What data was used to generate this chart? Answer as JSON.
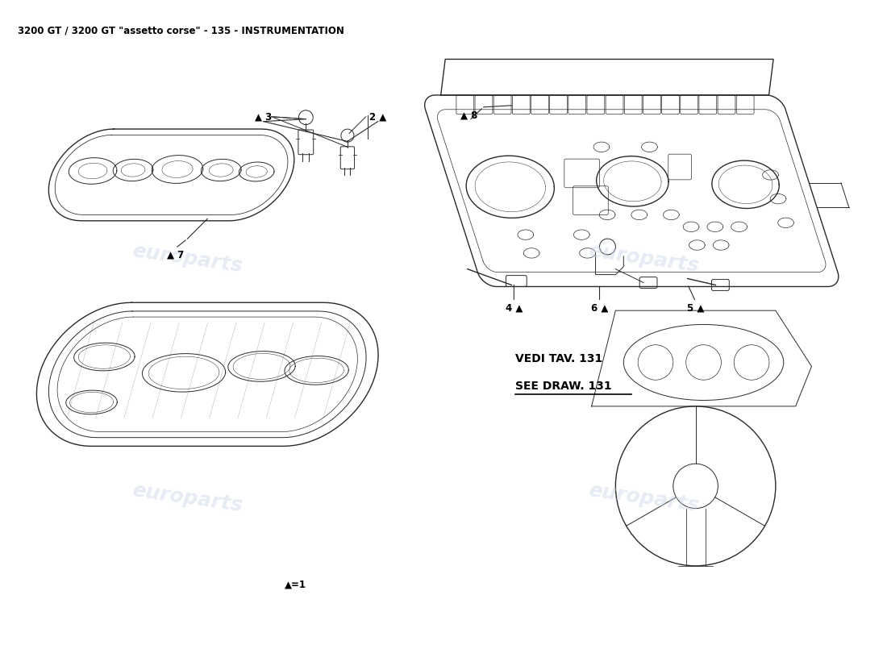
{
  "title": "3200 GT / 3200 GT \"assetto corse\" - 135 - INSTRUMENTATION",
  "title_fontsize": 8.5,
  "bg_color": "#ffffff",
  "watermark_color": "#c8d4e8",
  "watermark_alpha": 0.45,
  "label_fontsize": 8.5,
  "line_color": "#2a2a2a",
  "parts": [
    {
      "id": "1",
      "label": "▲=1"
    },
    {
      "id": "2",
      "label": "2 ▲"
    },
    {
      "id": "3",
      "label": "▲ 3"
    },
    {
      "id": "4",
      "label": "4 ▲"
    },
    {
      "id": "5",
      "label": "5 ▲"
    },
    {
      "id": "6",
      "label": "6 ▲"
    },
    {
      "id": "7",
      "label": "▲ 7"
    },
    {
      "id": "8",
      "label": "▲ 8"
    }
  ],
  "note_line1": "VEDI TAV. 131",
  "note_line2": "SEE DRAW. 131"
}
